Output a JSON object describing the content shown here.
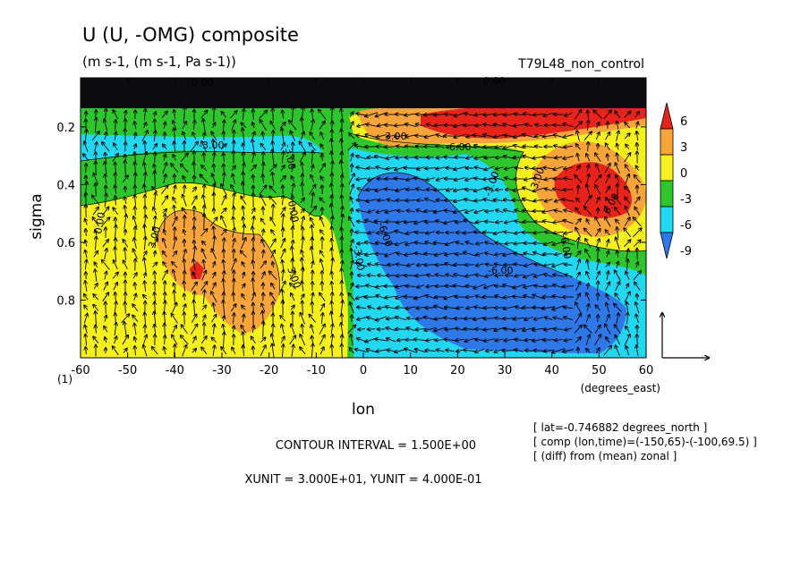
{
  "chart_data": {
    "type": "contour",
    "title": "U (U, -OMG) composite",
    "subtitle": "(m s-1, (m s-1, Pa s-1))",
    "run_label": "T79L48_non_control",
    "xlabel": "lon",
    "x_units": "(degrees_east)",
    "ylabel": "sigma",
    "bottom_label": "(1)",
    "xlim": [
      -60,
      60
    ],
    "ylim": [
      1.0,
      0.03
    ],
    "x_ticks": [
      "-60",
      "-50",
      "-40",
      "-30",
      "-20",
      "-10",
      "0",
      "10",
      "20",
      "30",
      "40",
      "50",
      "60"
    ],
    "y_ticks": [
      "0.2",
      "0.4",
      "0.6",
      "0.8"
    ],
    "colorbar": {
      "labels": [
        "6",
        "3",
        "0",
        "-3",
        "-6",
        "-9"
      ],
      "colors": [
        "#e8231b",
        "#f7a43b",
        "#f5f01e",
        "#2fc52c",
        "#22d7f0",
        "#2f78e8"
      ]
    },
    "contour_labels": [
      "-3.00",
      "-3.00",
      "0.00",
      "3.00",
      "0.00",
      "3.00",
      "-6.00",
      "-3.00",
      "-6.00",
      "3.00",
      "6.00",
      "3.00",
      "-3.00",
      "-6.00",
      "6.00",
      "0.00",
      "0.00"
    ],
    "fields": [
      {
        "label": "U",
        "units": "m s-1",
        "display": "shaded contours"
      },
      {
        "label": "(U, -OMG)",
        "units": "(m s-1, Pa s-1)",
        "display": "vectors"
      }
    ],
    "footer": {
      "contour_interval": "CONTOUR INTERVAL = 1.500E+00",
      "units": "XUNIT = 3.000E+01, YUNIT = 4.000E-01"
    },
    "notes": [
      "[ lat=-0.746882 degrees_north ]",
      "[ comp (lon,time)=(-150,65)-(-100,69.5) ]",
      "[ (diff) from (mean) zonal ]"
    ]
  }
}
